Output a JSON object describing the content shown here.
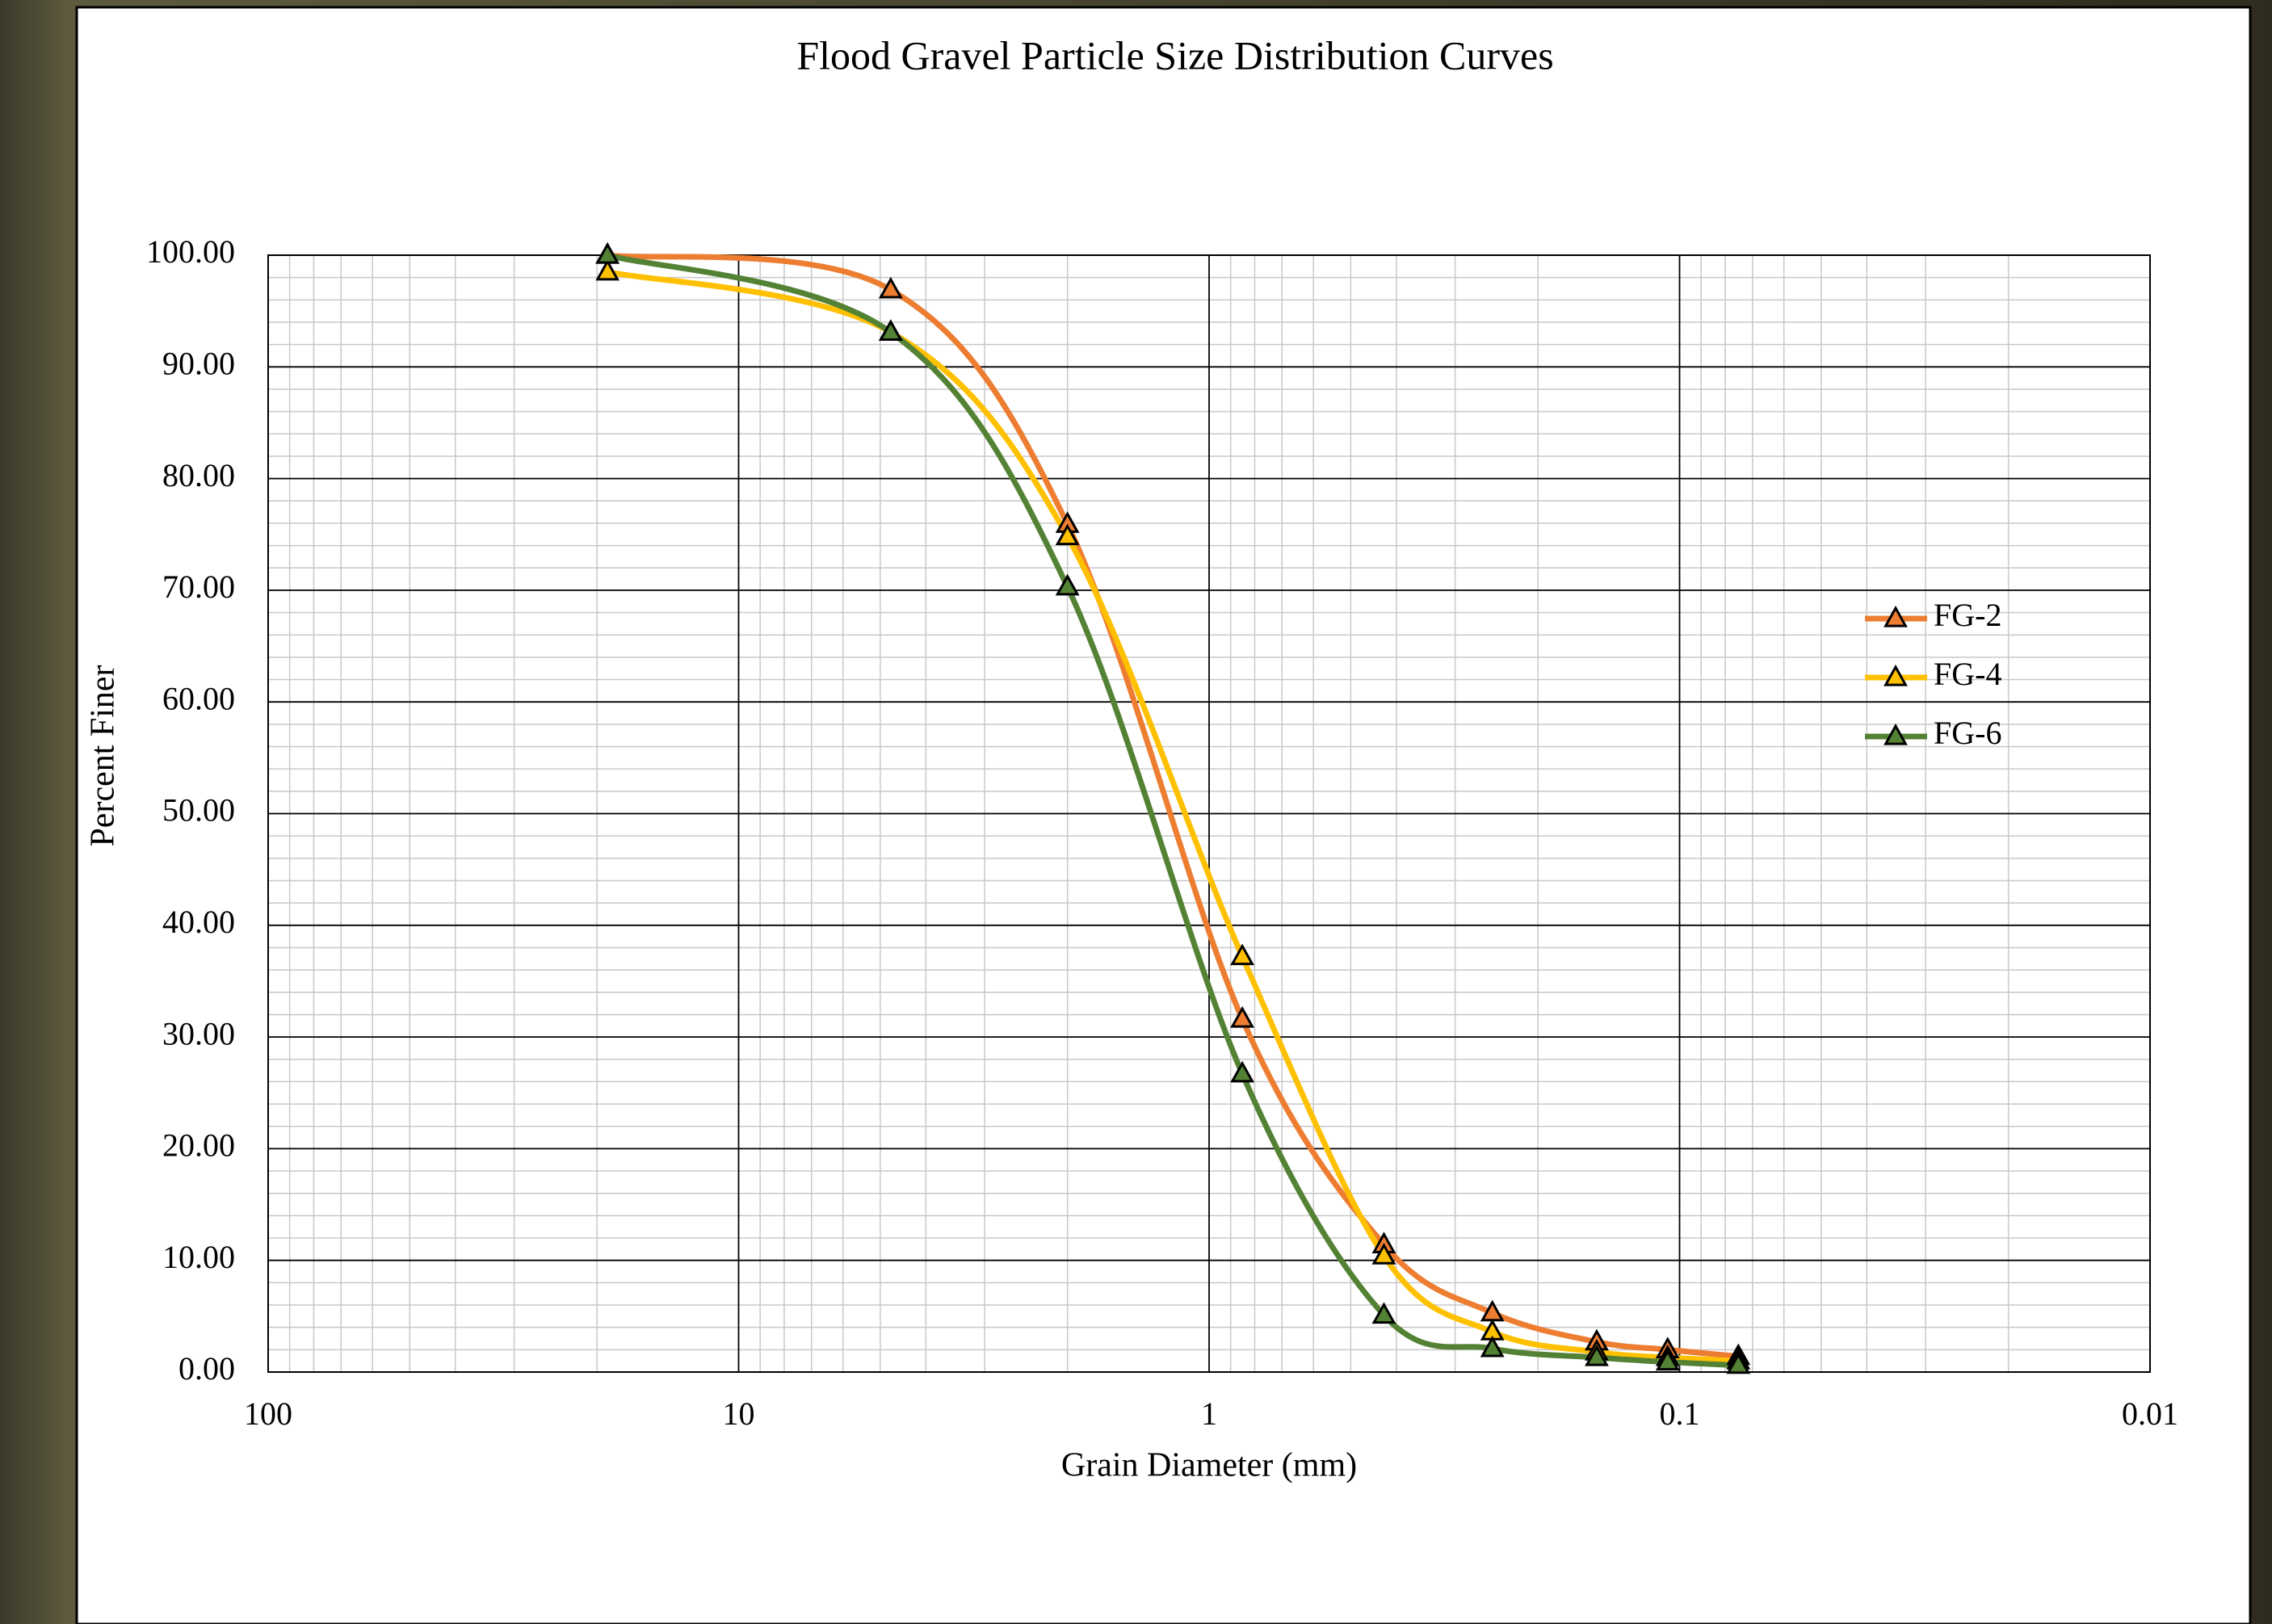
{
  "chart_data": {
    "type": "line",
    "title": "Flood Gravel Particle Size Distribution  Curves",
    "x_label": "Grain Diameter (mm)",
    "y_label": "Percent Finer",
    "x": [
      19,
      4.75,
      2.0,
      0.85,
      0.425,
      0.25,
      0.15,
      0.106,
      0.075
    ],
    "series": [
      {
        "name": "FG-2",
        "color": "#ED7D31",
        "values": [
          100,
          96.9,
          75.9,
          31.6,
          11.4,
          5.3,
          2.7,
          2.0,
          1.4
        ]
      },
      {
        "name": "FG-4",
        "color": "#FFC000",
        "values": [
          98.5,
          93.1,
          74.8,
          37.2,
          10.4,
          3.6,
          1.8,
          1.3,
          1.0
        ]
      },
      {
        "name": "FG-6",
        "color": "#548235",
        "values": [
          100,
          93.1,
          70.3,
          26.7,
          5.1,
          2.1,
          1.3,
          0.9,
          0.6
        ]
      }
    ],
    "x_log_scale": true,
    "xlim": [
      100,
      0.01
    ],
    "xticks": [
      100,
      10,
      1,
      0.1,
      0.01
    ],
    "ylim": [
      0,
      100
    ],
    "yticks": [
      {
        "value": 0,
        "label": "0.00"
      },
      {
        "value": 10,
        "label": "10.00"
      },
      {
        "value": 20,
        "label": "20.00"
      },
      {
        "value": 30,
        "label": "30.00"
      },
      {
        "value": 40,
        "label": "40.00"
      },
      {
        "value": 50,
        "label": "50.00"
      },
      {
        "value": 60,
        "label": "60.00"
      },
      {
        "value": 70,
        "label": "70.00"
      },
      {
        "value": 80,
        "label": "80.00"
      },
      {
        "value": 90,
        "label": "90.00"
      },
      {
        "value": 100,
        "label": "100.00"
      }
    ],
    "grid": true,
    "minor_grid": true,
    "smooth": true,
    "marker": "triangle",
    "legend_position": "right"
  }
}
